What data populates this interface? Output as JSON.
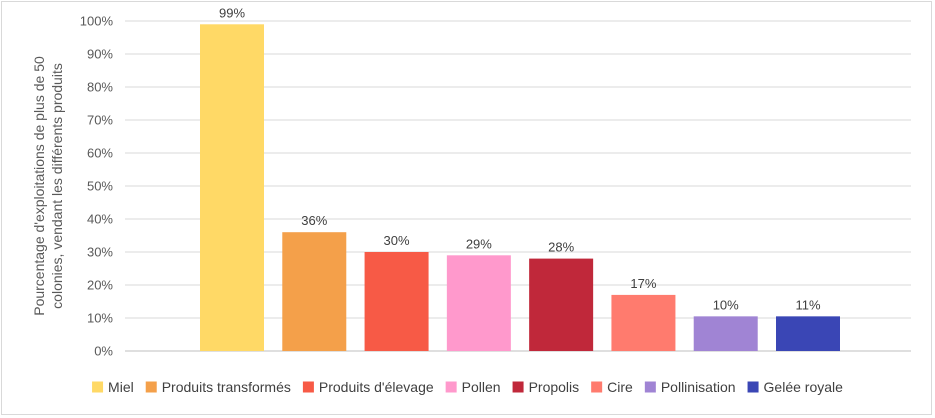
{
  "chart_data": {
    "type": "bar",
    "title": "",
    "xlabel": "",
    "ylabel_line1": "Pourcentage d'exploitations de plus de 50",
    "ylabel_line2": "colonies, vendant les différents produits",
    "ylim": [
      0,
      100
    ],
    "y_ticks": [
      "0%",
      "10%",
      "20%",
      "30%",
      "40%",
      "50%",
      "60%",
      "70%",
      "80%",
      "90%",
      "100%"
    ],
    "grid": true,
    "legend_position": "bottom",
    "series": [
      {
        "name": "Miel",
        "value": 99,
        "label": "99%",
        "color": "#FFD966"
      },
      {
        "name": "Produits transformés",
        "value": 36,
        "label": "36%",
        "color": "#F4A04A"
      },
      {
        "name": "Produits d'élevage",
        "value": 30,
        "label": "30%",
        "color": "#F75A46"
      },
      {
        "name": "Pollen",
        "value": 29,
        "label": "29%",
        "color": "#FF99CC"
      },
      {
        "name": "Propolis",
        "value": 28,
        "label": "28%",
        "color": "#C0283A"
      },
      {
        "name": "Cire",
        "value": 17,
        "label": "17%",
        "color": "#FF7B6E"
      },
      {
        "name": "Pollinisation",
        "value": 10.5,
        "label": "10%",
        "color": "#A084D4"
      },
      {
        "name": "Gelée royale",
        "value": 10.5,
        "label": "11%",
        "color": "#3A46B5"
      }
    ]
  }
}
